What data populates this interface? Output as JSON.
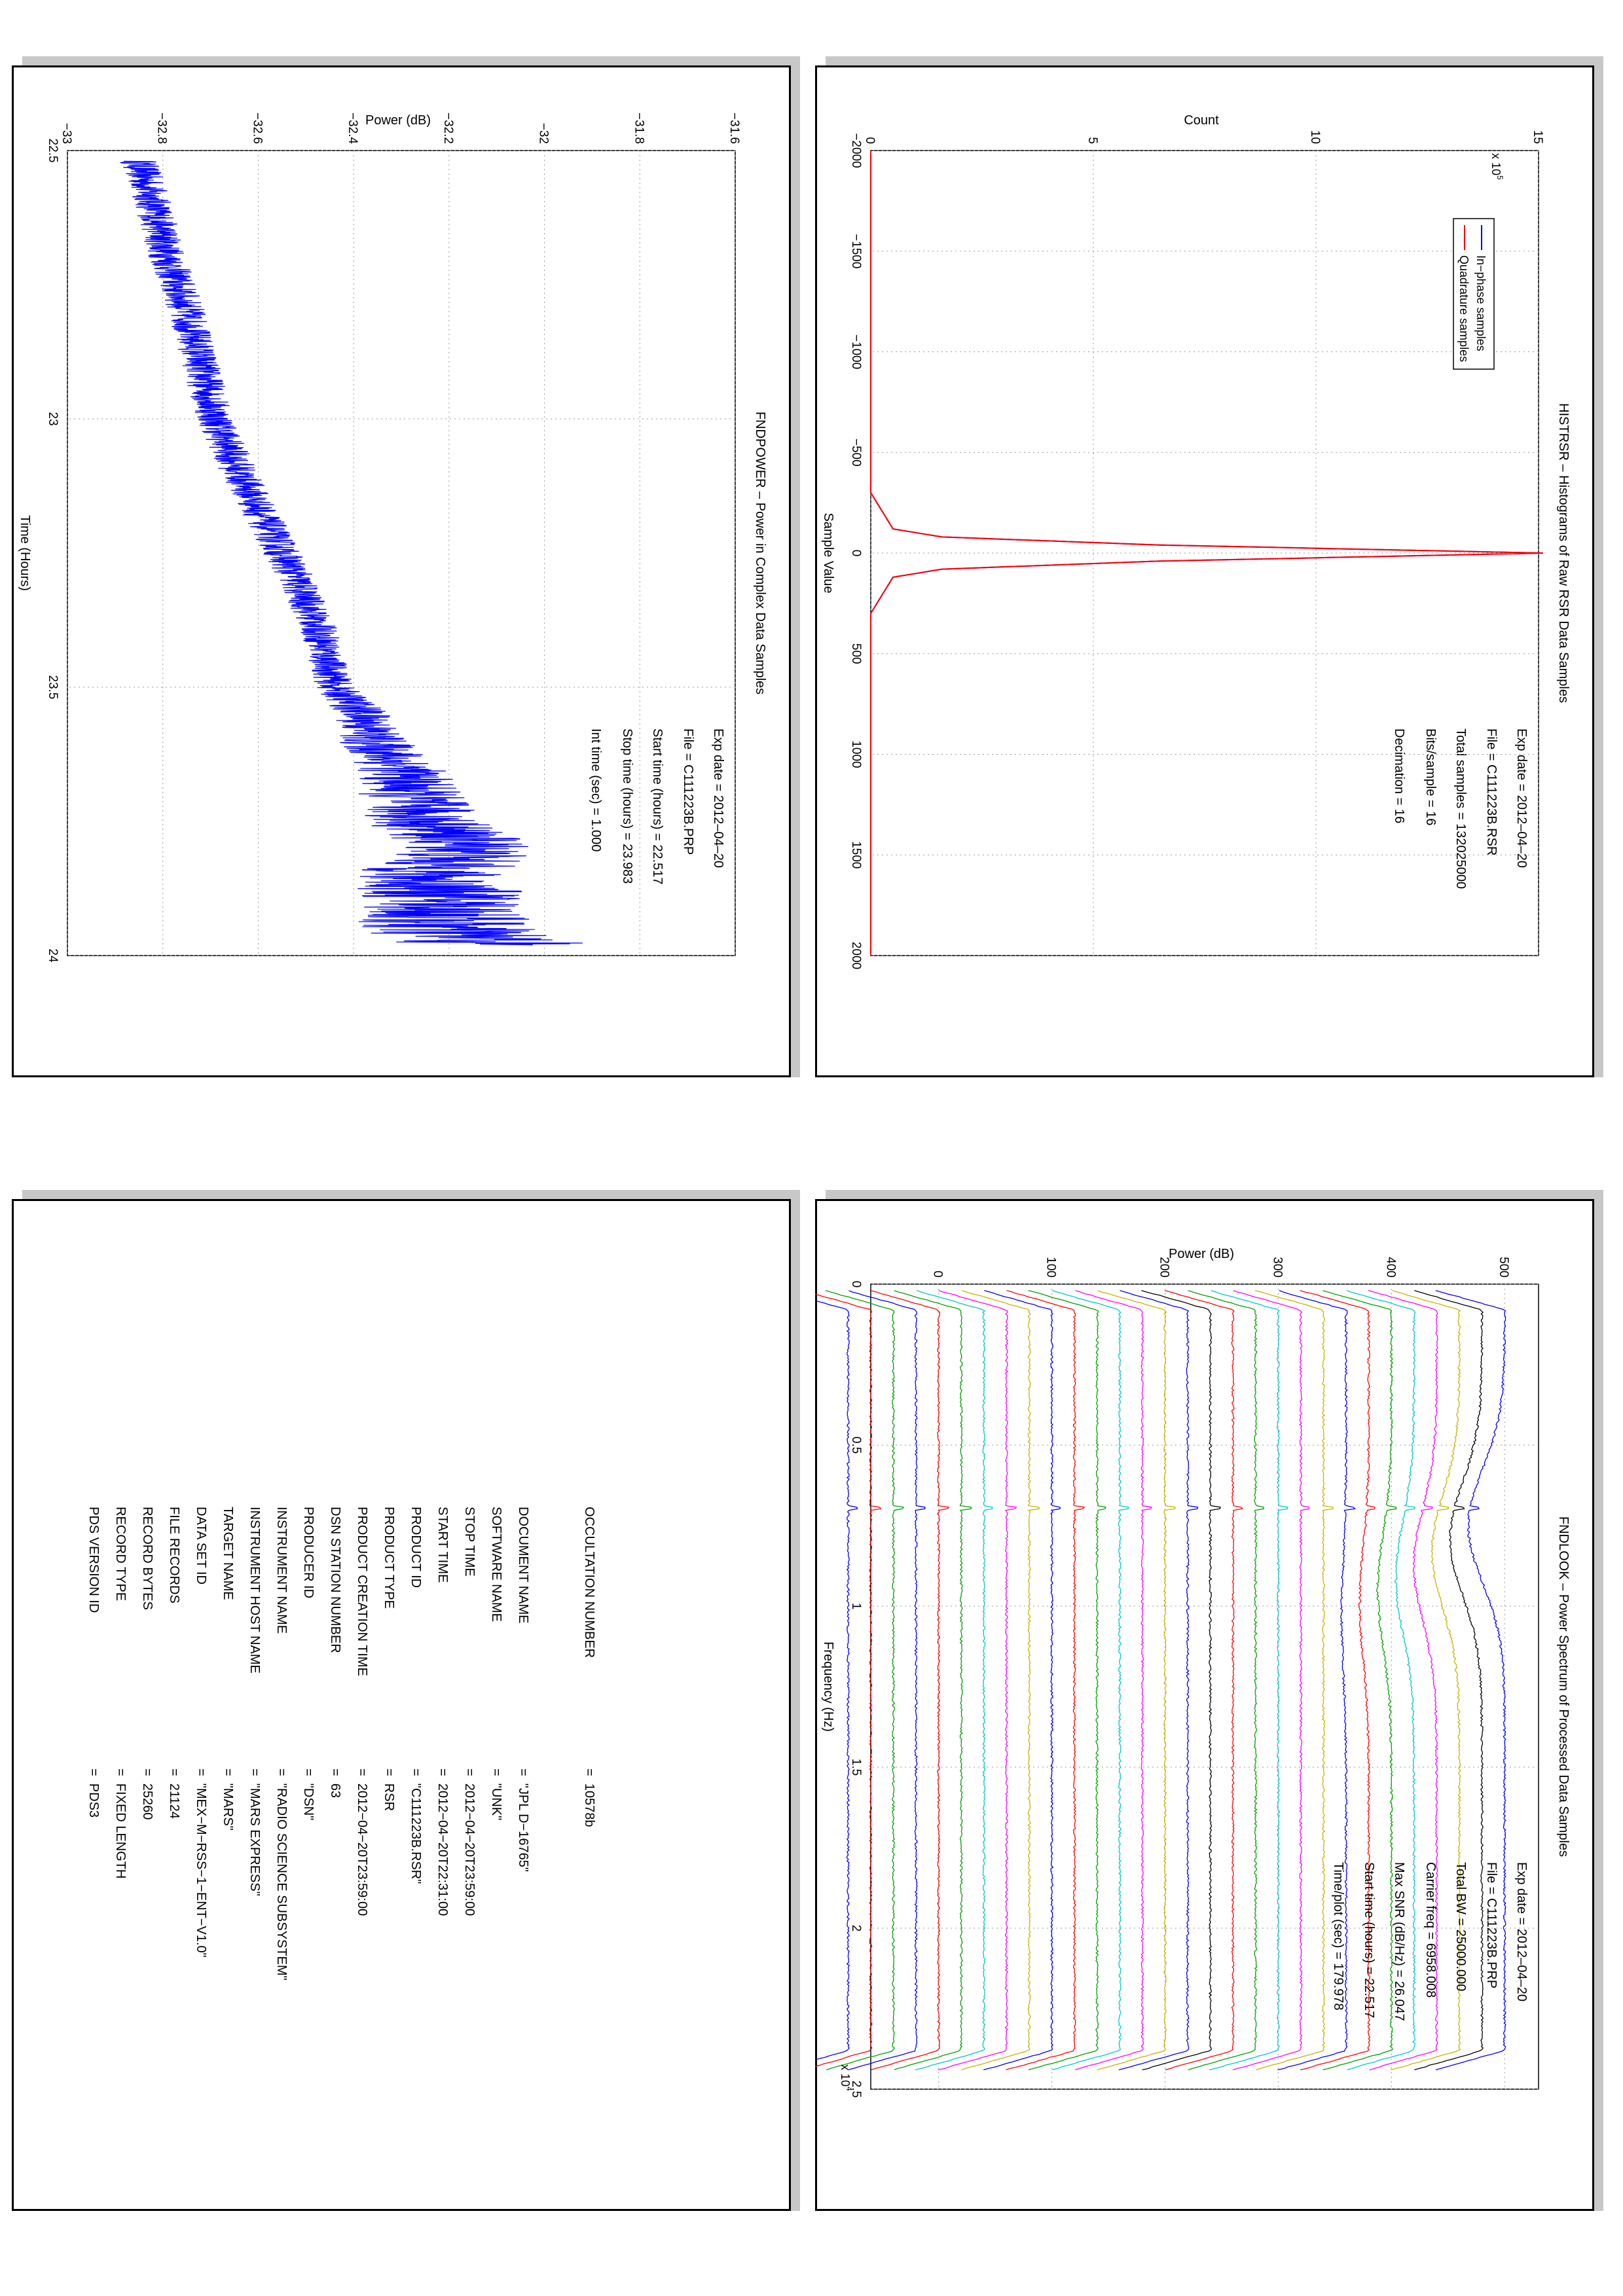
{
  "page": {
    "background": "#ffffff"
  },
  "panels": {
    "fndpower": {
      "title": "FNDPOWER – Power in Complex Data Samples",
      "info": [
        "Exp date = 2012–04–20",
        "File = C111223B.PRP",
        "Start time (hours) = 22.517",
        "Stop time (hours) =  23.983",
        "Int time (sec) =      1.000"
      ],
      "xlabel": "Time (Hours)",
      "ylabel": "Power (dB)",
      "xticks": [
        "22.5",
        "23",
        "23.5",
        "24"
      ],
      "yticks": [
        "−33",
        "−32.8",
        "−32.6",
        "−32.4",
        "−32.2",
        "−32",
        "−31.8",
        "−31.6"
      ]
    },
    "histrsr": {
      "title": "HISTRSR – Histograms of Raw RSR Data Samples",
      "info": [
        "Exp date = 2012–04–20",
        "File = C111223B.RSR",
        "Total samples = 132025000",
        "Bits/sample   =       16",
        "Decimation    =       16"
      ],
      "xlabel": "Sample Value",
      "ylabel": "Count",
      "xticks": [
        "−2000",
        "−1500",
        "−1000",
        "−500",
        "0",
        "500",
        "1000",
        "1500",
        "2000"
      ],
      "yticks": [
        "0",
        "5",
        "10",
        "15"
      ],
      "y_multiplier": "x 10",
      "y_multiplier_exp": "5",
      "legend": [
        "In−phase samples",
        "Quadrature samples"
      ]
    },
    "fndlook": {
      "title": "FNDLOOK – Power Spectrum of Processed Data Samples",
      "info": [
        "Exp date = 2012–04–20",
        "File = C111223B.PRP",
        "Total BW =       25000.000",
        "Carrier freq =    6958.008",
        "Max SNR (dB/Hz) =     26.047",
        "Start time (hours) =    22.517",
        "Time/plot (sec) =     179.978"
      ],
      "xlabel": "Frequency (Hz)",
      "ylabel": "Power (dB)",
      "xticks": [
        "0",
        "0.5",
        "1",
        "1.5",
        "2",
        "2.5"
      ],
      "yticks": [
        "0",
        "100",
        "200",
        "300",
        "400",
        "500"
      ],
      "x_multiplier": "x 10",
      "x_multiplier_exp": "4"
    },
    "label_table": {
      "rows": [
        {
          "key": "PDS VERSION ID",
          "value": "=  PDS3"
        },
        {
          "key": "RECORD TYPE",
          "value": "=  FIXED LENGTH"
        },
        {
          "key": "RECORD BYTES",
          "value": "=  25260"
        },
        {
          "key": "FILE RECORDS",
          "value": "=  21124"
        },
        {
          "key": "DATA SET ID",
          "value": "=  \"MEX−M−RSS−1−ENT−V1.0\""
        },
        {
          "key": "TARGET NAME",
          "value": "=  \"MARS\""
        },
        {
          "key": "INSTRUMENT HOST NAME",
          "value": "=  \"MARS EXPRESS\""
        },
        {
          "key": "INSTRUMENT NAME",
          "value": "=  \"RADIO SCIENCE SUBSYSTEM\""
        },
        {
          "key": "PRODUCER ID",
          "value": "=  \"DSN\""
        },
        {
          "key": "DSN STATION NUMBER",
          "value": "=  63"
        },
        {
          "key": "PRODUCT CREATION TIME",
          "value": "=  2012−04−20T23:59:00"
        },
        {
          "key": "PRODUCT TYPE",
          "value": "=  RSR"
        },
        {
          "key": "PRODUCT ID",
          "value": "=  \"C111223B.RSR\""
        },
        {
          "key": "START TIME",
          "value": "=  2012−04−20T22:31:00"
        },
        {
          "key": "STOP TIME",
          "value": "=  2012−04−20T23:59:00"
        },
        {
          "key": "SOFTWARE NAME",
          "value": "=  \"UNK\""
        },
        {
          "key": "DOCUMENT NAME",
          "value": "=  \"JPL D−16765\""
        },
        {
          "key": "OCCULTATION NUMBER",
          "value": "=  10578b"
        }
      ]
    }
  },
  "chart_data": [
    {
      "type": "line",
      "name": "FNDPOWER",
      "title": "FNDPOWER – Power in Complex Data Samples",
      "xlabel": "Time (Hours)",
      "ylabel": "Power (dB)",
      "xlim": [
        22.5,
        24
      ],
      "ylim": [
        -33,
        -31.6
      ],
      "grid": true,
      "color": "#0000ff",
      "x": [
        22.52,
        22.6,
        22.7,
        22.8,
        22.9,
        23.0,
        23.1,
        23.2,
        23.3,
        23.4,
        23.5,
        23.55,
        23.6,
        23.65,
        23.7,
        23.75,
        23.8,
        23.85,
        23.9,
        23.95,
        23.98
      ],
      "y": [
        -32.85,
        -32.82,
        -32.79,
        -32.75,
        -32.72,
        -32.69,
        -32.64,
        -32.58,
        -32.52,
        -32.47,
        -32.44,
        -32.38,
        -32.36,
        -32.3,
        -32.28,
        -32.25,
        -32.15,
        -32.25,
        -32.2,
        -32.22,
        -32.1
      ]
    },
    {
      "type": "line",
      "name": "HISTRSR",
      "title": "HISTRSR – Histograms of Raw RSR Data Samples",
      "xlabel": "Sample Value",
      "ylabel": "Count",
      "xlim": [
        -2000,
        2000
      ],
      "ylim": [
        0,
        15
      ],
      "y_scale_note": "x 10^5",
      "grid": true,
      "legend_position": "top-left",
      "series": [
        {
          "name": "In−phase samples",
          "color": "#0000ff",
          "x": [
            -2000,
            -300,
            -120,
            -80,
            -40,
            0,
            40,
            80,
            120,
            300,
            2000
          ],
          "y": [
            0,
            0,
            0.5,
            1.6,
            6.5,
            15.1,
            6.5,
            1.6,
            0.5,
            0,
            0
          ]
        },
        {
          "name": "Quadrature samples",
          "color": "#ff0000",
          "x": [
            -2000,
            -300,
            -120,
            -80,
            -40,
            0,
            40,
            80,
            120,
            300,
            2000
          ],
          "y": [
            0,
            0,
            0.5,
            1.6,
            6.5,
            15.1,
            6.5,
            1.6,
            0.5,
            0,
            0
          ]
        }
      ]
    },
    {
      "type": "line",
      "name": "FNDLOOK",
      "title": "FNDLOOK – Power Spectrum of Processed Data Samples",
      "xlabel": "Frequency (Hz)",
      "ylabel": "Power (dB)",
      "xlim": [
        0,
        2.5
      ],
      "x_scale_note": "x 10^4",
      "ylim": [
        -60,
        530
      ],
      "grid": true,
      "carrier_x": 0.6958,
      "n_traces": 30,
      "trace_offsets": [
        500,
        480,
        460,
        440,
        420,
        400,
        380,
        360,
        340,
        320,
        300,
        280,
        260,
        240,
        220,
        200,
        180,
        160,
        140,
        120,
        100,
        80,
        60,
        40,
        20,
        0,
        -20,
        -40,
        -60,
        -80
      ],
      "trace_colors": [
        "#0000ff",
        "#000000",
        "#c8b400",
        "#ff00ff",
        "#00c8c8",
        "#00a000",
        "#ff0000",
        "#0000ff",
        "#c8b400",
        "#ff00ff",
        "#00c8c8",
        "#00a000",
        "#ff0000",
        "#000000",
        "#0000ff",
        "#c8b400",
        "#ff00ff",
        "#00c8c8",
        "#00a000",
        "#ff0000",
        "#0000ff",
        "#c8b400",
        "#ff00ff",
        "#00c8c8",
        "#00a000",
        "#ff0000",
        "#0000ff",
        "#00a000",
        "#ff0000",
        "#0000ff"
      ]
    }
  ]
}
